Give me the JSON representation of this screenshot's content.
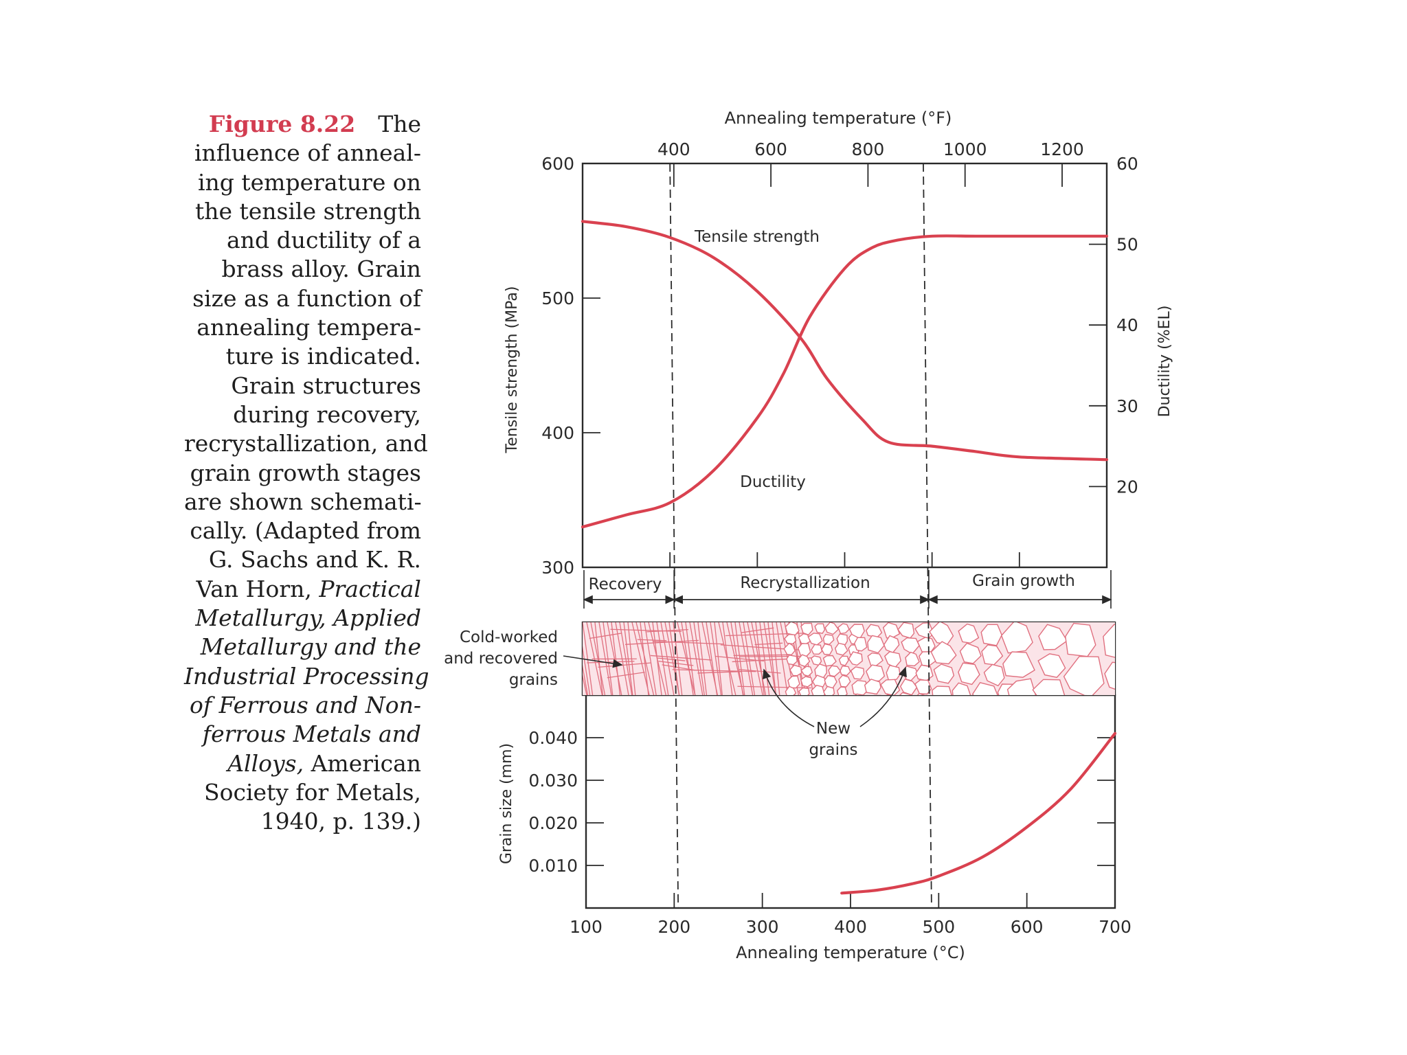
{
  "caption": {
    "label": "Figure 8.22",
    "lines": [
      [
        {
          "t": "The"
        }
      ],
      [
        {
          "t": "influence of anneal-"
        }
      ],
      [
        {
          "t": "ing temperature on"
        }
      ],
      [
        {
          "t": "the tensile strength"
        }
      ],
      [
        {
          "t": "and ductility of a"
        }
      ],
      [
        {
          "t": "brass alloy. Grain"
        }
      ],
      [
        {
          "t": "size as a function of"
        }
      ],
      [
        {
          "t": "annealing tempera-"
        }
      ],
      [
        {
          "t": "ture is indicated."
        }
      ],
      [
        {
          "t": "Grain structures"
        }
      ],
      [
        {
          "t": "during recovery,"
        }
      ],
      [
        {
          "t": "recrystallization, and"
        }
      ],
      [
        {
          "t": "grain growth stages"
        }
      ],
      [
        {
          "t": "are shown schemati-"
        }
      ],
      [
        {
          "t": "cally. (Adapted from"
        }
      ],
      [
        {
          "t": "G. Sachs and K. R."
        }
      ],
      [
        {
          "t": "Van Horn, "
        },
        {
          "t": "Practical",
          "i": true
        }
      ],
      [
        {
          "t": "Metallurgy, Applied",
          "i": true
        }
      ],
      [
        {
          "t": "Metallurgy and the",
          "i": true
        }
      ],
      [
        {
          "t": "Industrial Processing",
          "i": true
        }
      ],
      [
        {
          "t": "of Ferrous and Non-",
          "i": true
        }
      ],
      [
        {
          "t": "ferrous Metals and",
          "i": true
        }
      ],
      [
        {
          "t": "Alloys,",
          "i": true
        },
        {
          "t": " American"
        }
      ],
      [
        {
          "t": "Society for Metals,"
        }
      ],
      [
        {
          "t": "1940, p. 139.)"
        }
      ]
    ]
  },
  "colors": {
    "curve": "#d9414f",
    "axis": "#2a2a2a",
    "grain": "#e0707f",
    "grain_fill": "#fbe4e8"
  },
  "chart_data": {
    "type": "line",
    "x_axis_bottom": {
      "label": "Annealing temperature (°C)",
      "ticks": [
        100,
        200,
        300,
        400,
        500,
        600,
        700
      ],
      "range": [
        100,
        700
      ]
    },
    "x_axis_top": {
      "label": "Annealing temperature (°F)",
      "ticks": [
        400,
        600,
        800,
        1000,
        1200
      ]
    },
    "y_axis_left_upper": {
      "label": "Tensile strength (MPa)",
      "ticks": [
        300,
        400,
        500,
        600
      ],
      "range": [
        300,
        600
      ]
    },
    "y_axis_right_upper": {
      "label": "Ductility (%EL)",
      "ticks": [
        20,
        30,
        40,
        50,
        60
      ],
      "range": [
        10,
        60
      ]
    },
    "y_axis_left_lower": {
      "label": "Grain size (mm)",
      "ticks": [
        "0.010",
        "0.020",
        "0.030",
        "0.040"
      ],
      "range": [
        0,
        0.05
      ]
    },
    "series": [
      {
        "name": "Tensile strength",
        "axis": "left_upper",
        "x": [
          100,
          150,
          200,
          250,
          300,
          350,
          380,
          420,
          450,
          500,
          550,
          600,
          700
        ],
        "y": [
          557,
          553,
          545,
          530,
          505,
          470,
          440,
          410,
          393,
          390,
          386,
          382,
          380
        ]
      },
      {
        "name": "Ductility",
        "axis": "right_upper",
        "x": [
          100,
          150,
          200,
          250,
          300,
          330,
          360,
          400,
          430,
          460,
          500,
          550,
          600,
          700
        ],
        "y": [
          15,
          16.5,
          18,
          22,
          28.5,
          34,
          41,
          47,
          49.5,
          50.5,
          51,
          51,
          51,
          51
        ]
      },
      {
        "name": "Grain size",
        "axis": "left_lower",
        "x": [
          390,
          430,
          470,
          500,
          550,
          600,
          650,
          700
        ],
        "y": [
          0.0035,
          0.0042,
          0.0057,
          0.0075,
          0.012,
          0.019,
          0.028,
          0.041
        ]
      }
    ],
    "stage_boundaries_c": [
      200,
      490
    ],
    "stages": [
      "Recovery",
      "Recrystallization",
      "Grain growth"
    ],
    "annotations": {
      "tensile": "Tensile strength",
      "ductility": "Ductility",
      "cold_worked": [
        "Cold-worked",
        "and recovered",
        "grains"
      ],
      "new_grains": [
        "New",
        "grains"
      ]
    }
  }
}
